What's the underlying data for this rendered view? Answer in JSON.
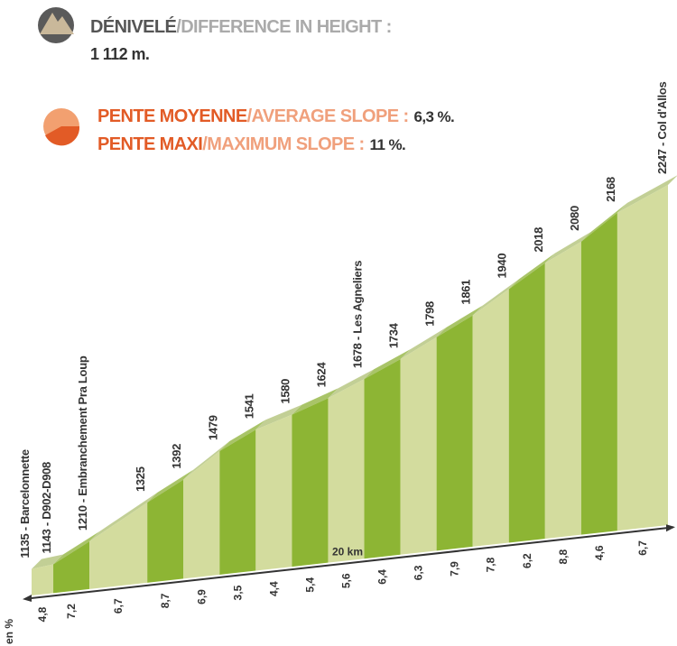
{
  "chart_data": {
    "type": "profile",
    "stats": [
      {
        "label": "DÉNIVELÉ",
        "label_en": "/DIFFERENCE IN HEIGHT :",
        "value": "1 112 m."
      },
      {
        "label": "PENTE MOYENNE",
        "label_en": "/AVERAGE SLOPE :",
        "value": "6,3 %."
      },
      {
        "label": "PENTE MAXI",
        "label_en": "/MAXIMUM SLOPE :",
        "value": "11 %."
      }
    ],
    "x": [
      0,
      0.6,
      1.6,
      3.2,
      4.2,
      5.2,
      6.2,
      7.2,
      8.2,
      9.2,
      10.2,
      11.2,
      12.2,
      13.2,
      14.2,
      15.2,
      16.2,
      17.6
    ],
    "values": [
      1135,
      1143,
      1210,
      1325,
      1392,
      1479,
      1541,
      1580,
      1624,
      1678,
      1734,
      1798,
      1861,
      1940,
      2018,
      2080,
      2168,
      2247
    ],
    "value_labels": [
      "1135 - Barcelonnette",
      "1143 - D902-D908",
      "1210 - Embranchement Pra Loup",
      "1325",
      "1392",
      "1479",
      "1541",
      "1580",
      "1624",
      "1678 - Les Agneliers",
      "1734",
      "1798",
      "1861",
      "1940",
      "2018",
      "2080",
      "2168",
      "2247 - Col d'Allos"
    ],
    "slopes": [
      4.8,
      7.2,
      6.7,
      8.7,
      6.9,
      3.5,
      4.4,
      5.4,
      5.6,
      6.4,
      6.3,
      7.9,
      7.8,
      6.2,
      8.8,
      4.6,
      6.7
    ],
    "slope_labels": [
      "4,8",
      "7,2",
      "6,7",
      "8,7",
      "6,9",
      "3,5",
      "4,4",
      "5,4",
      "5,6",
      "6,4",
      "6,3",
      "7,9",
      "7,8",
      "6,2",
      "8,8",
      "4,6",
      "6,7"
    ],
    "slope_unit": "en %",
    "distance_label": "20 km",
    "xlim": [
      0,
      17.6
    ],
    "ylim": [
      1089,
      2247
    ],
    "colors": [
      "#d3dc9e",
      "#8db534"
    ],
    "top_colors": [
      "#c2cf95",
      "#a9c468"
    ]
  }
}
